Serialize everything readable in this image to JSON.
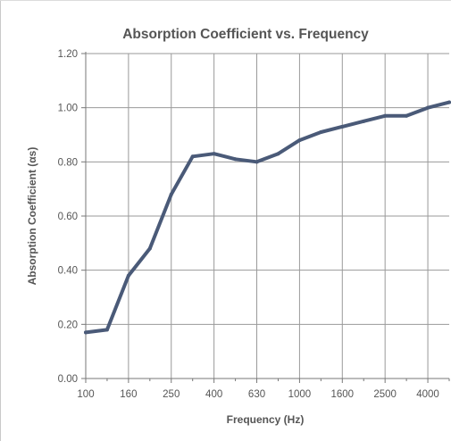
{
  "chart_data": {
    "type": "line",
    "title": "Absorption Coefficient vs. Frequency",
    "xlabel": "Frequency (Hz)",
    "ylabel": "Absorption Coefficient (αs)",
    "x_tick_labels": [
      "100",
      "160",
      "250",
      "400",
      "630",
      "1000",
      "1600",
      "2500",
      "4000"
    ],
    "y_tick_labels": [
      "0.00",
      "0.20",
      "0.40",
      "0.60",
      "0.80",
      "1.00",
      "1.20"
    ],
    "ylim": [
      0,
      1.2
    ],
    "x_scale": "log (one-third octave bands)",
    "grid": true,
    "line_color": "#4a5a78",
    "series": [
      {
        "x": [
          100,
          125,
          160,
          200,
          250,
          315,
          400,
          500,
          630,
          800,
          1000,
          1250,
          1600,
          2000,
          2500,
          3150,
          4000,
          5000
        ],
        "values": [
          0.17,
          0.18,
          0.38,
          0.48,
          0.68,
          0.82,
          0.83,
          0.81,
          0.8,
          0.83,
          0.88,
          0.91,
          0.93,
          0.95,
          0.97,
          0.97,
          1.0,
          1.02
        ]
      }
    ]
  }
}
